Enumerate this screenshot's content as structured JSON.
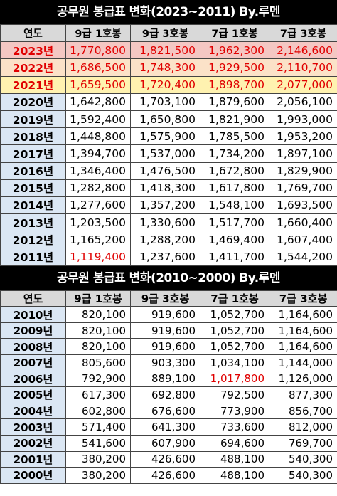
{
  "table1": {
    "title": "공무원 봉급표 변화(2023~2011) By.루멘",
    "headers": [
      "연도",
      "9급 1호봉",
      "9급 3호봉",
      "7급 1호봉",
      "7급 3호봉"
    ],
    "rows": [
      [
        "2023년",
        "1,770,800",
        "1,821,500",
        "1,962,300",
        "2,146,600"
      ],
      [
        "2022년",
        "1,686,500",
        "1,748,300",
        "1,929,500",
        "2,110,700"
      ],
      [
        "2021년",
        "1,659,500",
        "1,720,400",
        "1,898,700",
        "2,077,000"
      ],
      [
        "2020년",
        "1,642,800",
        "1,703,100",
        "1,879,600",
        "2,056,100"
      ],
      [
        "2019년",
        "1,592,400",
        "1,650,800",
        "1,821,900",
        "1,993,000"
      ],
      [
        "2018년",
        "1,448,800",
        "1,575,900",
        "1,785,500",
        "1,953,200"
      ],
      [
        "2017년",
        "1,394,700",
        "1,537,000",
        "1,734,200",
        "1,897,100"
      ],
      [
        "2016년",
        "1,346,400",
        "1,476,500",
        "1,672,800",
        "1,829,900"
      ],
      [
        "2015년",
        "1,282,800",
        "1,418,300",
        "1,617,800",
        "1,769,700"
      ],
      [
        "2014년",
        "1,277,600",
        "1,357,200",
        "1,548,100",
        "1,693,500"
      ],
      [
        "2013년",
        "1,203,500",
        "1,330,600",
        "1,517,700",
        "1,660,400"
      ],
      [
        "2012년",
        "1,165,200",
        "1,288,200",
        "1,469,400",
        "1,607,400"
      ],
      [
        "2011년",
        "1,119,400",
        "1,237,600",
        "1,411,700",
        "1,544,200"
      ]
    ]
  },
  "table2": {
    "title": "공무원 봉급표 변화(2010~2000) By.루멘",
    "headers": [
      "연도",
      "9급 1호봉",
      "9급 3호봉",
      "7급 1호봉",
      "7급 3호봉"
    ],
    "rows": [
      [
        "2010년",
        "820,100",
        "919,600",
        "1,052,700",
        "1,164,600"
      ],
      [
        "2009년",
        "820,100",
        "919,600",
        "1,052,700",
        "1,164,600"
      ],
      [
        "2008년",
        "820,100",
        "919,600",
        "1,052,700",
        "1,164,600"
      ],
      [
        "2007년",
        "805,600",
        "903,300",
        "1,034,100",
        "1,144,000"
      ],
      [
        "2006년",
        "792,900",
        "889,100",
        "1,017,800",
        "1,126,000"
      ],
      [
        "2005년",
        "617,300",
        "692,800",
        "792,500",
        "877,300"
      ],
      [
        "2004년",
        "602,800",
        "676,600",
        "773,900",
        "856,700"
      ],
      [
        "2003년",
        "571,400",
        "641,300",
        "733,600",
        "812,000"
      ],
      [
        "2002년",
        "541,600",
        "607,900",
        "694,600",
        "769,700"
      ],
      [
        "2001년",
        "380,200",
        "426,600",
        "488,100",
        "540,300"
      ],
      [
        "2000년",
        "380,200",
        "426,600",
        "488,100",
        "540,300"
      ]
    ]
  },
  "colors": {
    "highlight_red": "#e00000",
    "row_2023": "#f4c7c3",
    "row_2022": "#fbe2c8",
    "row_2021": "#fff2b0",
    "header_gray": "#d9d9d9",
    "year_blue": "#dbe7f4"
  }
}
